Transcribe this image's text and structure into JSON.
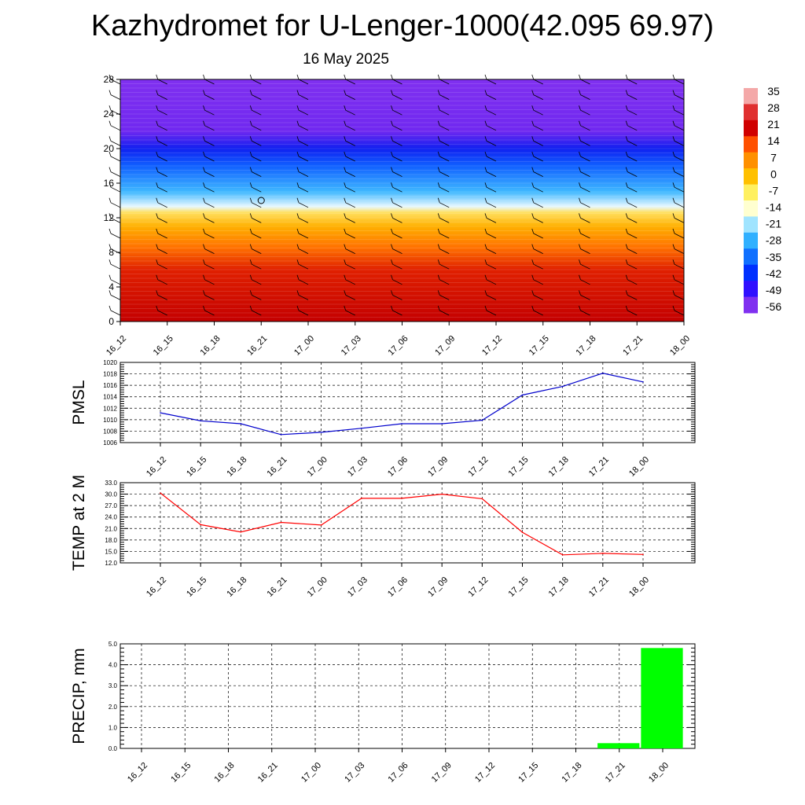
{
  "title": "Kazhydromet for U-Lenger-1000(42.095 69.97)",
  "subtitle": "16 May 2025",
  "chart_data": [
    {
      "type": "heatmap",
      "name": "temperature-cross-section",
      "x_ticks": [
        "16_12",
        "16_15",
        "16_18",
        "16_21",
        "17_00",
        "17_03",
        "17_06",
        "17_09",
        "17_12",
        "17_15",
        "17_18",
        "17_21",
        "18_00"
      ],
      "y_ticks": [
        0,
        4,
        8,
        12,
        16,
        20,
        24,
        28
      ],
      "ylim": [
        0,
        28
      ],
      "colorbar": {
        "labels": [
          35,
          28,
          21,
          14,
          7,
          0,
          -7,
          -14,
          -21,
          -28,
          -35,
          -42,
          -49,
          -56
        ],
        "colors": [
          "#f4a8a8",
          "#e03030",
          "#d00000",
          "#ff5000",
          "#ff9000",
          "#ffc000",
          "#fff060",
          "#ffffd0",
          "#a0e4ff",
          "#30b0ff",
          "#1070ff",
          "#0030ff",
          "#3010ff",
          "#8030f0"
        ]
      },
      "bands": [
        {
          "y": 0,
          "color": "#c40000"
        },
        {
          "y": 6,
          "color": "#e02000"
        },
        {
          "y": 8.5,
          "color": "#ff7000"
        },
        {
          "y": 11,
          "color": "#ffb000"
        },
        {
          "y": 12.6,
          "color": "#ffe060"
        },
        {
          "y": 13.3,
          "color": "#e8f8ff"
        },
        {
          "y": 15,
          "color": "#40b8ff"
        },
        {
          "y": 18,
          "color": "#1060ff"
        },
        {
          "y": 20,
          "color": "#1020f0"
        },
        {
          "y": 22,
          "color": "#7028f0"
        },
        {
          "y": 28,
          "color": "#8030f0"
        }
      ],
      "grid": "x-ticks only"
    },
    {
      "type": "line",
      "ylabel": "PMSL",
      "x": [
        "16_12",
        "16_15",
        "16_18",
        "16_21",
        "17_00",
        "17_03",
        "17_06",
        "17_09",
        "17_12",
        "17_15",
        "17_18",
        "17_21",
        "18_00"
      ],
      "values": [
        1011.2,
        1009.8,
        1009.3,
        1007.4,
        1007.8,
        1008.5,
        1009.3,
        1009.3,
        1009.9,
        1014.3,
        1015.8,
        1018.1,
        1016.6
      ],
      "ylim": [
        1006,
        1020
      ],
      "y_ticks": [
        "1006",
        "1008",
        "1010",
        "1012",
        "1014",
        "1016",
        "1018",
        "1020"
      ],
      "color": "#0000cc",
      "grid": true
    },
    {
      "type": "line",
      "ylabel": "TEMP at 2 M",
      "x": [
        "16_12",
        "16_15",
        "16_18",
        "16_21",
        "17_00",
        "17_03",
        "17_06",
        "17_09",
        "17_12",
        "17_15",
        "17_18",
        "17_21",
        "18_00"
      ],
      "values": [
        30.3,
        22.0,
        20.1,
        22.6,
        21.9,
        28.9,
        28.9,
        30.0,
        28.8,
        20.0,
        14.1,
        14.5,
        14.2
      ],
      "ylim": [
        12,
        33
      ],
      "y_ticks": [
        "12.0",
        "15.0",
        "18.0",
        "21.0",
        "24.0",
        "27.0",
        "30.0",
        "33.0"
      ],
      "color": "#ff0000",
      "grid": true
    },
    {
      "type": "bar",
      "ylabel": "PRECIP, mm",
      "categories": [
        "16_12",
        "16_15",
        "16_18",
        "16_21",
        "17_00",
        "17_03",
        "17_06",
        "17_09",
        "17_12",
        "17_15",
        "17_18",
        "17_21",
        "18_00"
      ],
      "values": [
        0,
        0,
        0,
        0,
        0,
        0,
        0,
        0,
        0,
        0,
        0,
        0.25,
        4.8
      ],
      "ylim": [
        0,
        5
      ],
      "y_ticks": [
        "0.0",
        "1.0",
        "2.0",
        "3.0",
        "4.0",
        "5.0"
      ],
      "color": "#00ff00",
      "grid": true
    }
  ]
}
